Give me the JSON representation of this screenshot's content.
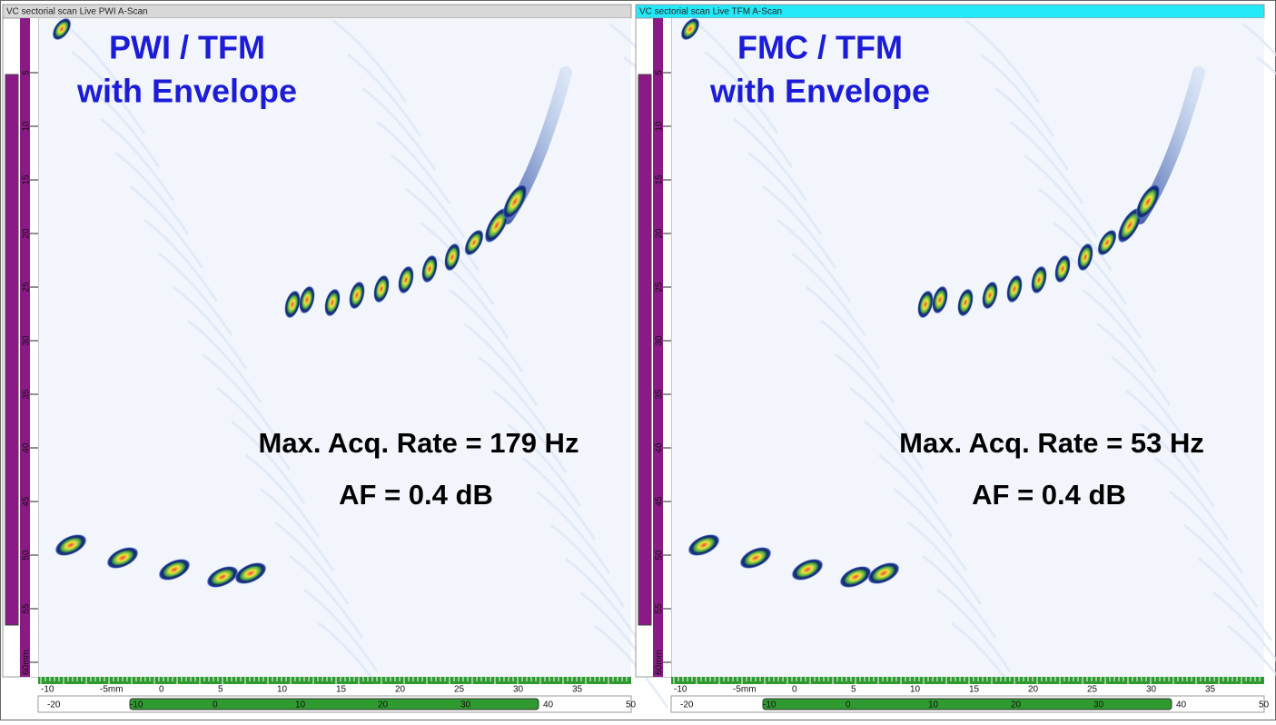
{
  "panels": [
    {
      "title": "VC sectorial scan Live PWI A-Scan",
      "heading": [
        "PWI / TFM",
        "with Envelope"
      ],
      "rate": "Max. Acq. Rate = 179 Hz",
      "af": "AF = 0.4 dB"
    },
    {
      "title": "VC sectorial scan Live TFM A-Scan",
      "heading": [
        "FMC / TFM",
        "with Envelope"
      ],
      "rate": "Max. Acq. Rate = 53 Hz",
      "af": "AF = 0.4 dB"
    }
  ],
  "depth_labels": [
    "5",
    "10",
    "15",
    "20",
    "25",
    "30",
    "35",
    "40",
    "45",
    "50",
    "55",
    "60mm"
  ],
  "x_labels": [
    "-10",
    "-5mm",
    "0",
    "5",
    "10",
    "15",
    "20",
    "25",
    "30",
    "35"
  ],
  "bottom_labels": [
    "-20",
    "-10",
    "0",
    "10",
    "20",
    "30",
    "40",
    "50"
  ]
}
